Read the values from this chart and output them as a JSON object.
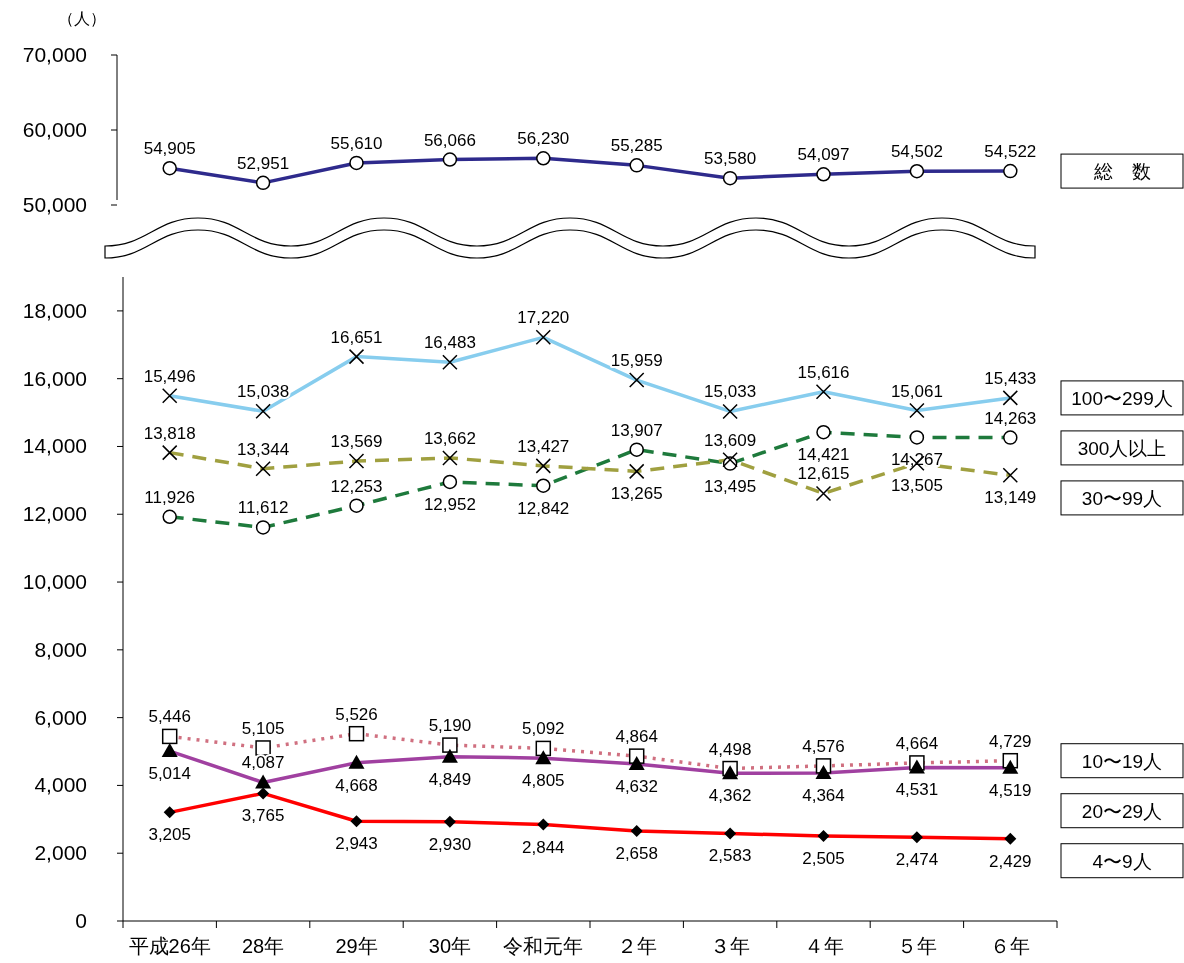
{
  "chart_data": [
    {
      "type": "line",
      "ylabel": "（人）",
      "categories": [
        null,
        null,
        null,
        null,
        null,
        null,
        null,
        null,
        null,
        null
      ],
      "ylim": [
        50000,
        70000
      ],
      "yticks": [
        {
          "value": 50000,
          "label": "50,000"
        },
        {
          "value": 60000,
          "label": "60,000"
        },
        {
          "value": 70000,
          "label": "70,000"
        }
      ],
      "tick_labels": "y",
      "legend": "right",
      "series": [
        {
          "name": "総　数",
          "color": "#2e2a8c",
          "marker": "circle",
          "line_style": "solid",
          "values": [
            54905,
            52951,
            55610,
            56066,
            56230,
            55285,
            53580,
            54097,
            54502,
            54522
          ],
          "value_labels": [
            "54,905",
            "52,951",
            "55,610",
            "56,066",
            "56,230",
            "55,285",
            "53,580",
            "54,097",
            "54,502",
            "54,522"
          ]
        }
      ]
    },
    {
      "type": "line",
      "categories": [
        "平成26年",
        "28年",
        "29年",
        "30年",
        "令和元年",
        "２年",
        "３年",
        "４年",
        "５年",
        "６年"
      ],
      "ylim": [
        0,
        19000
      ],
      "yticks": [
        0,
        {
          "value": 2000,
          "label": "2,000"
        },
        {
          "value": 4000,
          "label": "4,000"
        },
        {
          "value": 6000,
          "label": "6,000"
        },
        {
          "value": 8000,
          "label": "8,000"
        },
        {
          "value": 10000,
          "label": "10,000"
        },
        {
          "value": 12000,
          "label": "12,000"
        },
        {
          "value": 14000,
          "label": "14,000"
        },
        {
          "value": 16000,
          "label": "16,000"
        },
        {
          "value": 18000,
          "label": "18,000"
        }
      ],
      "legend": "right",
      "series": [
        {
          "name": "100〜299人",
          "color": "#87cdee",
          "marker": "cross",
          "line_style": "solid",
          "values": [
            15496,
            15038,
            16651,
            16483,
            17220,
            15959,
            15033,
            15616,
            15061,
            15433
          ],
          "value_labels": [
            "15,496",
            "15,038",
            "16,651",
            "16,483",
            "17,220",
            "15,959",
            "15,033",
            "15,616",
            "15,061",
            "15,433"
          ]
        },
        {
          "name": "300人以上",
          "color": "#1e7a3c",
          "marker": "circle",
          "line_style": "dashed",
          "values": [
            11926,
            11612,
            12253,
            12952,
            12842,
            13907,
            13495,
            14421,
            14267,
            14263
          ],
          "value_labels": [
            "11,926",
            "11,612",
            "12,253",
            "12,952",
            "12,842",
            "13,907",
            "13,495",
            "14,421",
            "14,267",
            "14,263"
          ]
        },
        {
          "name": "30〜99人",
          "color": "#a0a040",
          "marker": "cross",
          "line_style": "dashed",
          "values": [
            13818,
            13344,
            13569,
            13662,
            13427,
            13265,
            13609,
            12615,
            13505,
            13149
          ],
          "value_labels": [
            "13,818",
            "13,344",
            "13,569",
            "13,662",
            "13,427",
            "13,265",
            "13,609",
            "12,615",
            "13,505",
            "13,149"
          ]
        },
        {
          "name": "10〜19人",
          "color": "#d07080",
          "marker": "square",
          "line_style": "dotted",
          "values": [
            5446,
            5105,
            5526,
            5190,
            5092,
            4864,
            4498,
            4576,
            4664,
            4729
          ],
          "value_labels": [
            "5,446",
            "5,105",
            "5,526",
            "5,190",
            "5,092",
            "4,864",
            "4,498",
            "4,576",
            "4,664",
            "4,729"
          ]
        },
        {
          "name": "20〜29人",
          "color": "#a040a0",
          "marker": "triangle",
          "line_style": "solid",
          "values": [
            5014,
            4087,
            4668,
            4849,
            4805,
            4632,
            4362,
            4364,
            4531,
            4519
          ],
          "value_labels": [
            "5,014",
            "4,087",
            "4,668",
            "4,849",
            "4,805",
            "4,632",
            "4,362",
            "4,364",
            "4,531",
            "4,519"
          ]
        },
        {
          "name": "4〜9人",
          "color": "#ff0000",
          "marker": "diamond",
          "line_style": "solid",
          "values": [
            3205,
            3765,
            2943,
            2930,
            2844,
            2658,
            2583,
            2505,
            2474,
            2429
          ],
          "value_labels": [
            "3,205",
            "3,765",
            "2,943",
            "2,930",
            "2,844",
            "2,658",
            "2,583",
            "2,505",
            "2,474",
            "2,429"
          ]
        }
      ]
    }
  ]
}
